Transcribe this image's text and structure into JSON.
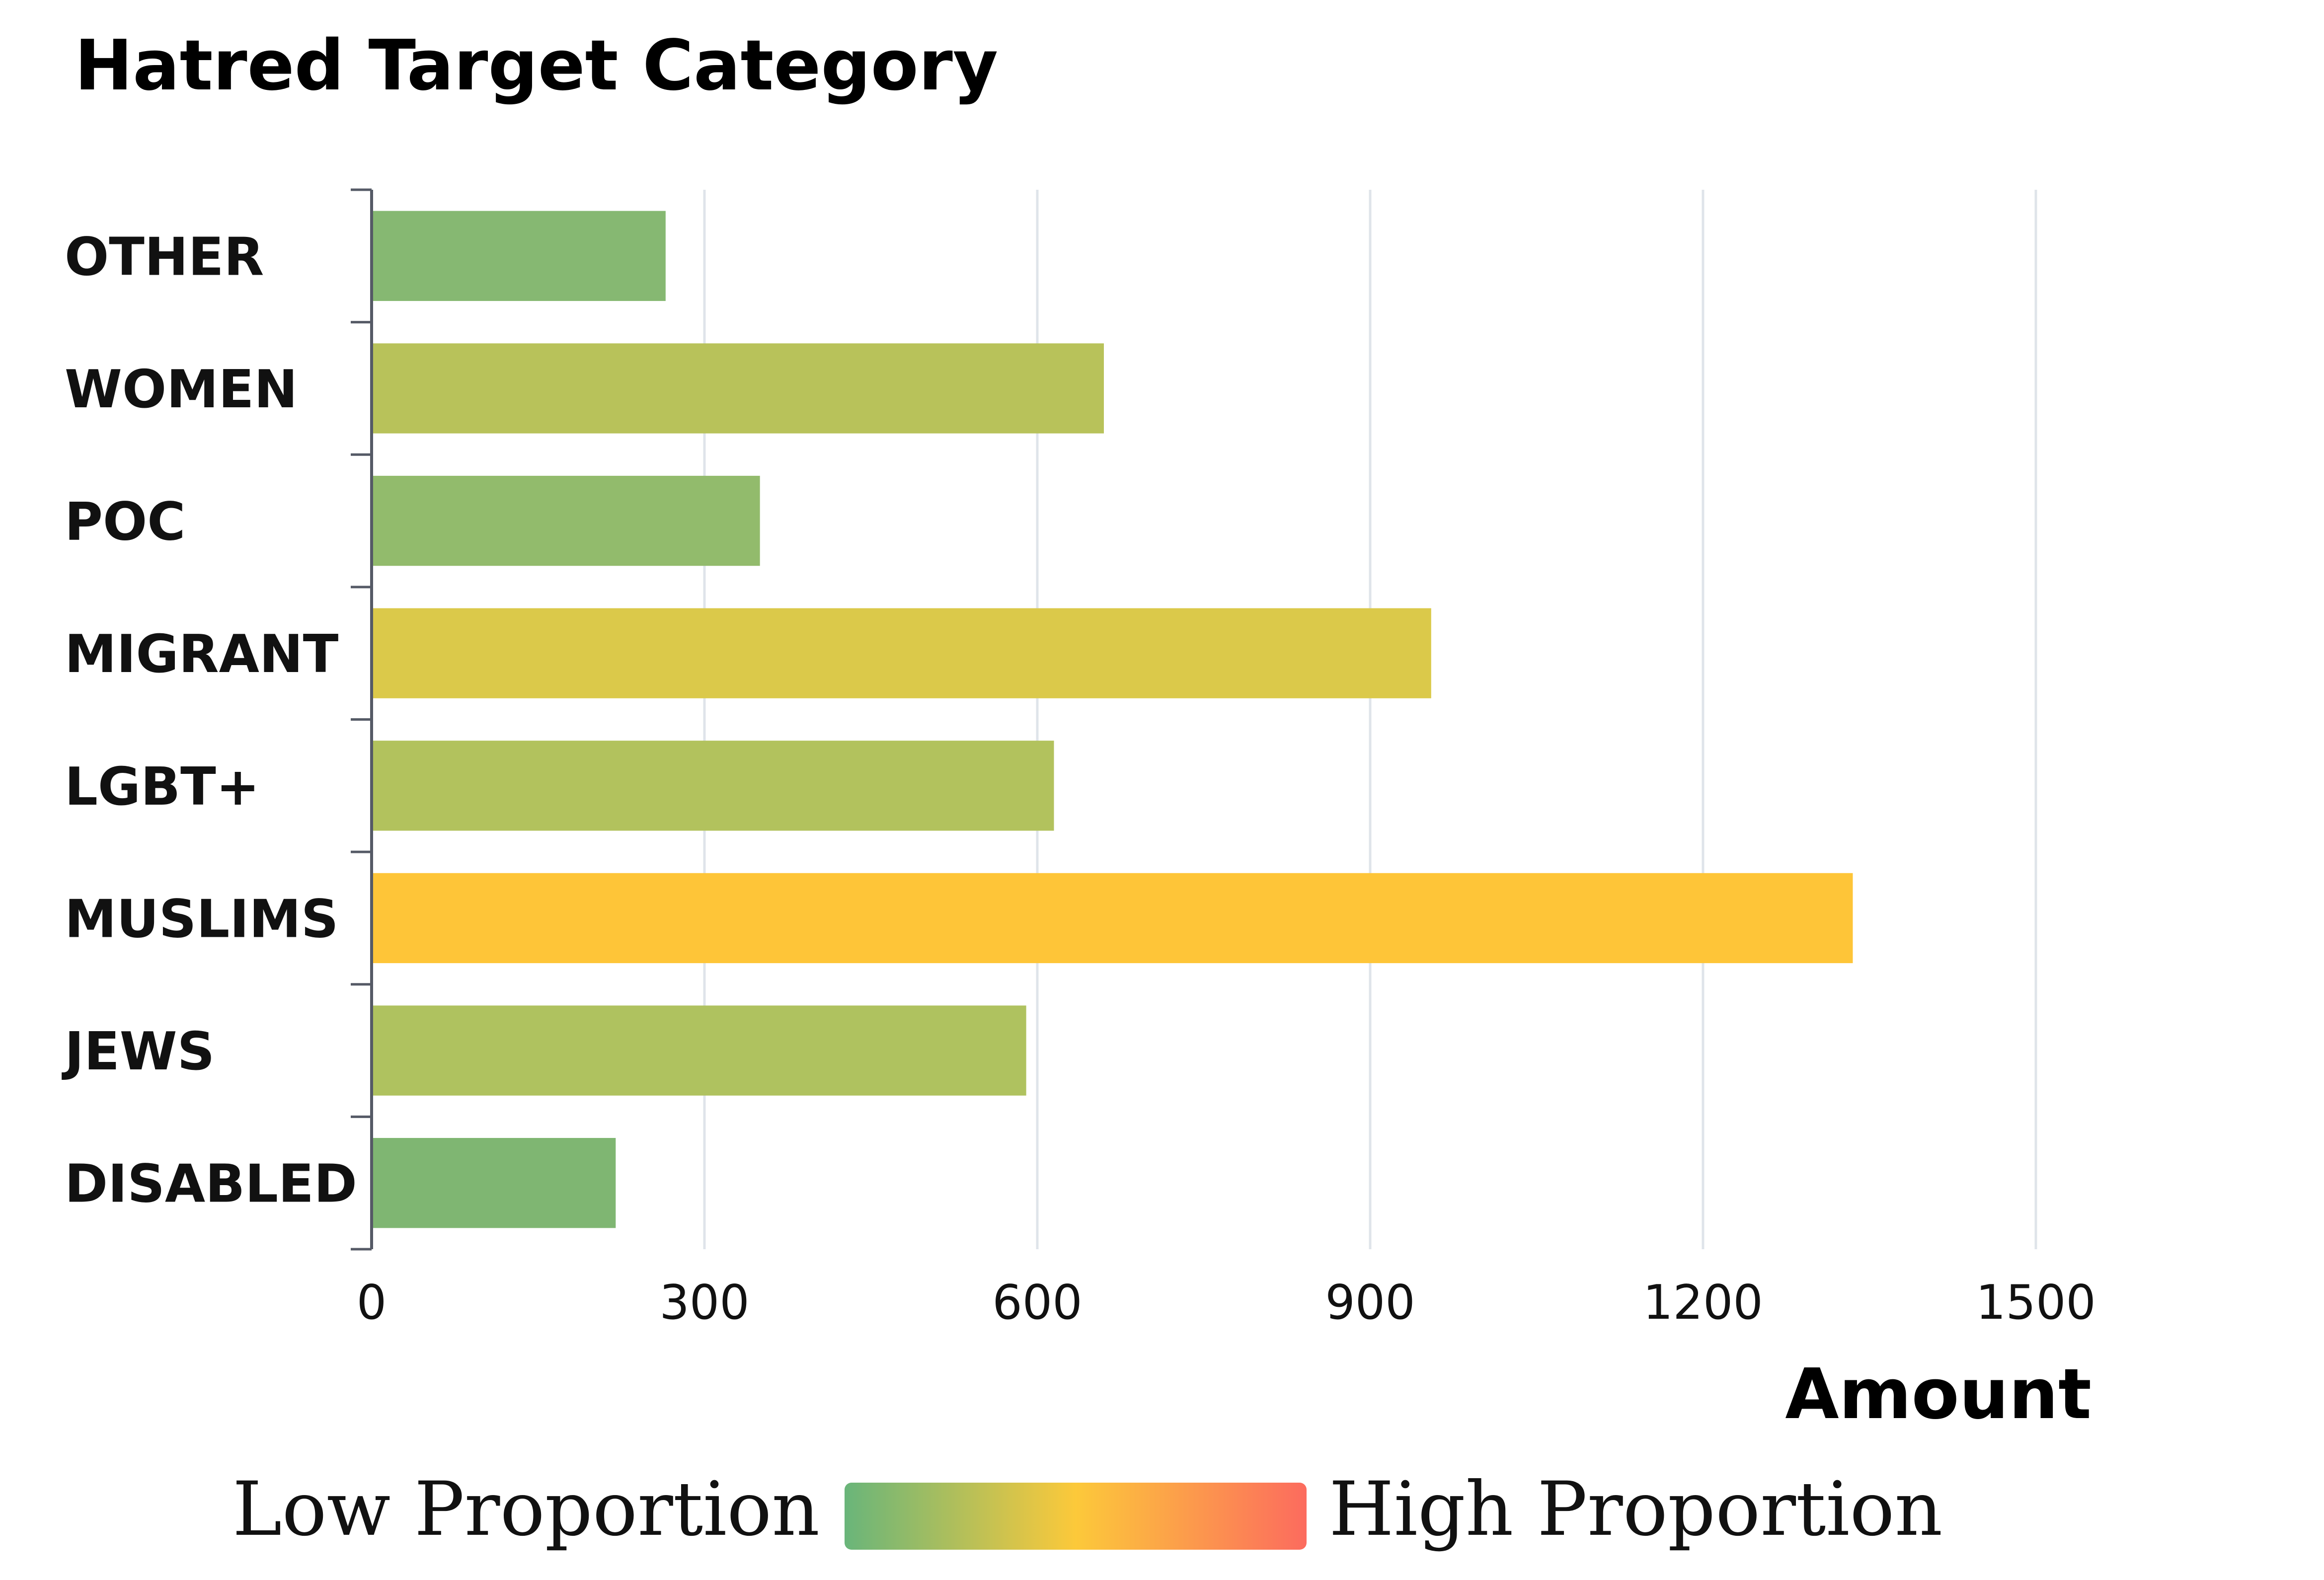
{
  "chart_data": {
    "type": "bar",
    "orientation": "horizontal",
    "title": "Hatred Target Category",
    "xlabel": "Amount",
    "ylabel": "",
    "xlim": [
      0,
      1500
    ],
    "xticks": [
      0,
      300,
      600,
      900,
      1200,
      1500
    ],
    "grid": "vertical",
    "categories": [
      "OTHER",
      "WOMEN",
      "POC",
      "MIGRANT",
      "LGBT+",
      "MUSLIMS",
      "JEWS",
      "DISABLED"
    ],
    "values": [
      265,
      660,
      350,
      955,
      615,
      1335,
      590,
      220
    ],
    "bar_colors": [
      "#86B872",
      "#B8C25A",
      "#92BB6C",
      "#DBC94A",
      "#B2C25D",
      "#FEC538",
      "#AFC25F",
      "#7FB672"
    ],
    "color_scale": {
      "low_label": "Low Proportion",
      "high_label": "High Proportion",
      "colors": [
        "#69B57A",
        "#FCC93A",
        "#FC6B5E"
      ],
      "legend_placement": "bottom"
    }
  }
}
